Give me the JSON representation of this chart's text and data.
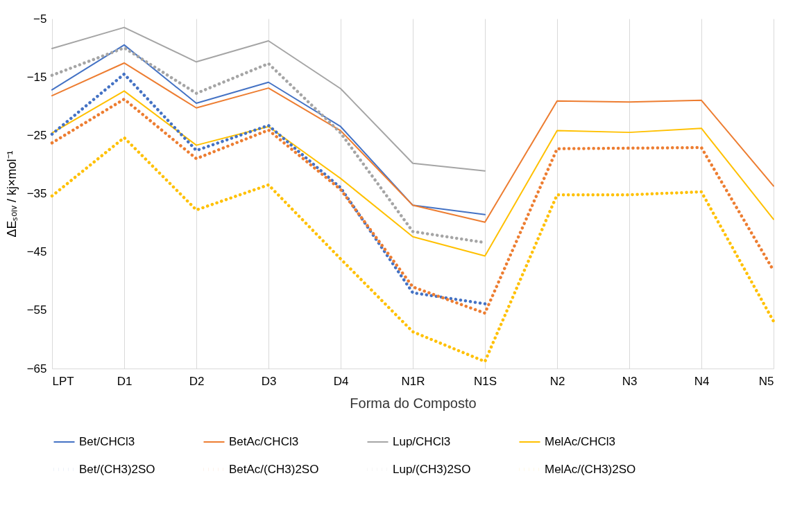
{
  "chart_data": {
    "type": "line",
    "xlabel": "Forma do Composto",
    "ylabel": "ΔEₛₒₗᵥ / kj×mol⁻¹",
    "categories": [
      "LPT",
      "D1",
      "D2",
      "D3",
      "D4",
      "N1R",
      "N1S",
      "N2",
      "N3",
      "N4",
      "N5"
    ],
    "ylim": [
      -65,
      -5
    ],
    "yticks": [
      -65,
      -55,
      -45,
      -35,
      -25,
      -15,
      -5
    ],
    "grid": "x",
    "legend": "bottom",
    "marker": "none",
    "series": [
      {
        "name": "Bet/CHCl3",
        "color": "#4472c4",
        "line_style": "solid",
        "values": [
          -17.2,
          -9.5,
          -19.5,
          -15.9,
          -23.5,
          -37,
          -38.6,
          null,
          null,
          null,
          null
        ]
      },
      {
        "name": "BetAc/CHCl3",
        "color": "#ed7d31",
        "line_style": "solid",
        "values": [
          -18.2,
          -12.6,
          -20.3,
          -16.9,
          -24.2,
          -37,
          -39.9,
          -19.1,
          -19.3,
          -19,
          -33.7
        ]
      },
      {
        "name": "Lup/CHCl3",
        "color": "#a5a5a5",
        "line_style": "solid",
        "values": [
          -10.1,
          -6.5,
          -12.4,
          -8.8,
          -17,
          -29.8,
          -31.1,
          null,
          null,
          null,
          null
        ]
      },
      {
        "name": "MelAc/CHCl3",
        "color": "#ffc000",
        "line_style": "solid",
        "values": [
          -24.6,
          -17.4,
          -26.7,
          -23.5,
          -32.4,
          -42.4,
          -45.7,
          -24.2,
          -24.5,
          -23.8,
          -39.4
        ]
      },
      {
        "name": "Bet/(CH3)2SO",
        "color": "#4472c4",
        "line_style": "dotted",
        "values": [
          -24.8,
          -14.5,
          -27.6,
          -23.3,
          -34,
          -52,
          -53.9,
          null,
          null,
          null,
          null
        ]
      },
      {
        "name": "BetAc/(CH3)2SO",
        "color": "#ed7d31",
        "line_style": "dotted",
        "values": [
          -26.3,
          -18.8,
          -29,
          -24.1,
          -34.3,
          -51,
          -55.5,
          -27.3,
          -27.2,
          -27.1,
          -48.2
        ]
      },
      {
        "name": "Lup/(CH3)2SO",
        "color": "#a5a5a5",
        "line_style": "dotted",
        "values": [
          -14.7,
          -10,
          -17.8,
          -12.7,
          -24.6,
          -41.5,
          -43.4,
          null,
          null,
          null,
          null
        ]
      },
      {
        "name": "MelAc/(CH3)2SO",
        "color": "#ffc000",
        "line_style": "dotted",
        "values": [
          -35.4,
          -25.4,
          -37.8,
          -33.5,
          -46.2,
          -58.7,
          -63.8,
          -35.2,
          -35.2,
          -34.7,
          -56.9
        ]
      }
    ]
  }
}
